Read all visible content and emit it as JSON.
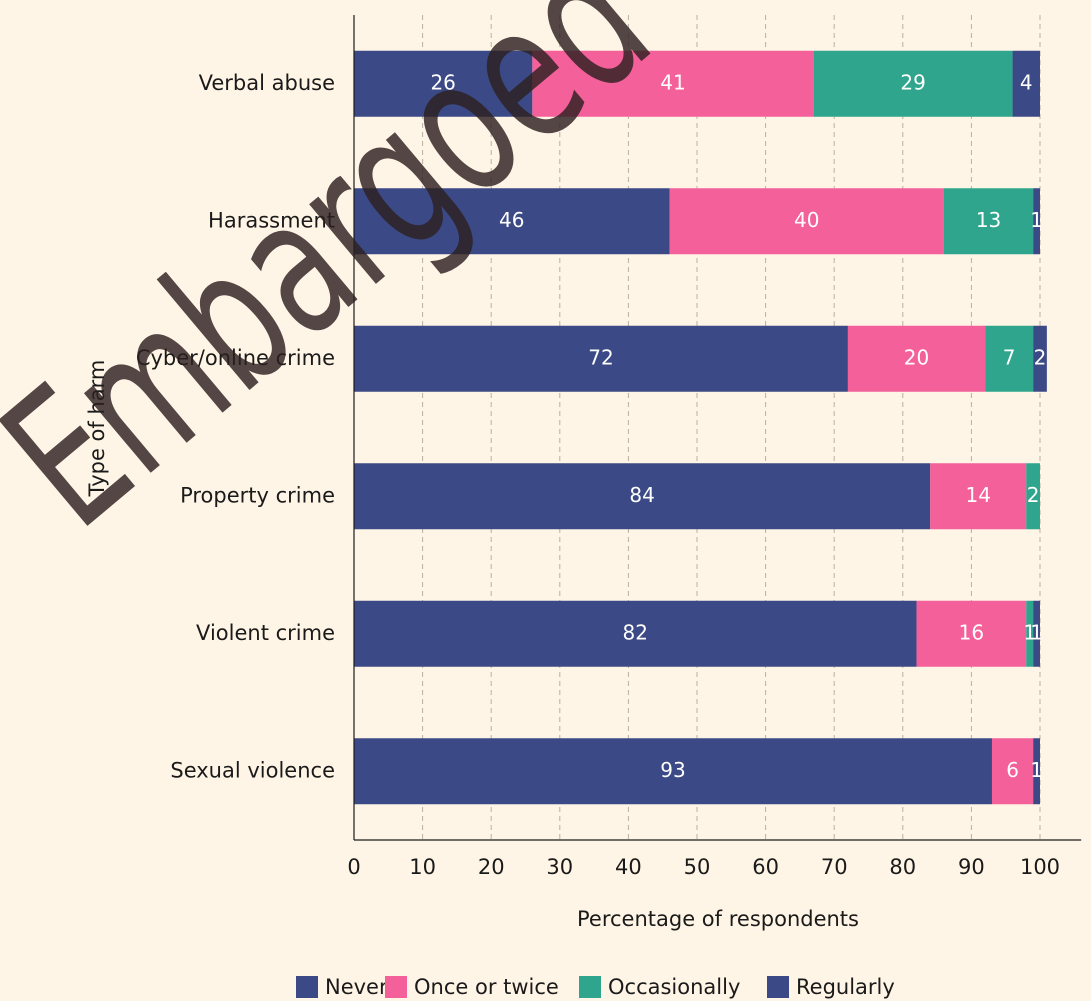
{
  "chart_data": {
    "type": "stacked_barh",
    "categories": [
      "Verbal abuse",
      "Harassment",
      "Cyber/online crime",
      "Property crime",
      "Violent crime",
      "Sexual violence"
    ],
    "series": [
      {
        "name": "Never",
        "color": "#3b4a86",
        "values": [
          26,
          46,
          72,
          84,
          82,
          93
        ]
      },
      {
        "name": "Once or twice",
        "color": "#f4609a",
        "values": [
          41,
          40,
          20,
          14,
          16,
          6
        ]
      },
      {
        "name": "Occasionally",
        "color": "#2ea58c",
        "values": [
          29,
          13,
          7,
          2,
          1,
          0
        ]
      },
      {
        "name": "Regularly",
        "color": "#3b4a86",
        "values": [
          4,
          1,
          2,
          0,
          1,
          1
        ]
      }
    ],
    "xlim": [
      0,
      106
    ],
    "xticks": [
      0,
      10,
      20,
      30,
      40,
      50,
      60,
      70,
      80,
      90,
      100
    ],
    "xlabel": "Percentage of respondents",
    "ylabel": "Type of harm",
    "grid": true,
    "legend": "bottom",
    "watermark": "Embargoed"
  }
}
